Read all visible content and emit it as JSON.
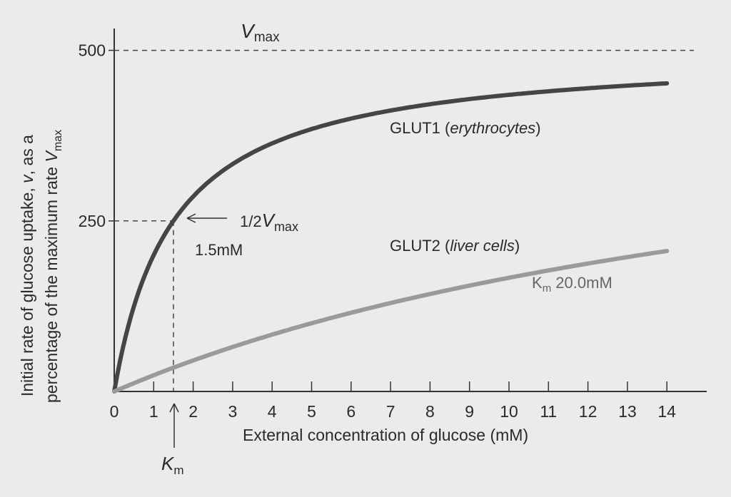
{
  "chart_data": {
    "type": "line",
    "title": "",
    "xlabel": "External concentration of glucose (mM)",
    "ylabel": {
      "line1_prefix": "Initial rate of glucose uptake, ",
      "line1_italic": "v",
      "line1_suffix": ", as a",
      "line2_prefix": "percentage of the maximum rate ",
      "line2_italic": "V",
      "line2_sub": "max"
    },
    "xlim": [
      0,
      15
    ],
    "ylim": [
      0,
      500
    ],
    "x_ticks": [
      0,
      1,
      2,
      3,
      4,
      5,
      6,
      7,
      8,
      9,
      10,
      11,
      12,
      13,
      14
    ],
    "x_tick_labels": [
      "0",
      "1",
      "2",
      "3",
      "4",
      "5",
      "6",
      "7",
      "8",
      "9",
      "10",
      "11",
      "12",
      "13",
      "14"
    ],
    "y_ticks": [
      250,
      500
    ],
    "y_tick_labels": [
      "250",
      "500"
    ],
    "vmax_value": 500,
    "series": [
      {
        "name_prefix": "GLUT1 (",
        "name_italic": "erythrocytes",
        "name_suffix": ")",
        "km": 1.5,
        "vmax": 500,
        "x_range": [
          0,
          14
        ],
        "color": "#454545"
      },
      {
        "name_prefix": "GLUT2 (",
        "name_italic": "liver cells",
        "name_suffix": ")",
        "km": 20.0,
        "vmax": 500,
        "x_range": [
          0,
          14
        ],
        "color": "#9a9a9a"
      }
    ],
    "annotations": {
      "vmax_label": {
        "italic": "V",
        "sub": "max"
      },
      "half_vmax_label": {
        "prefix": "1/2",
        "italic": "V",
        "sub": "max"
      },
      "km1_label": "1.5mM",
      "km2_label": {
        "main": "K",
        "sub": "m",
        "value": " 20.0mM"
      },
      "km_axis_label": {
        "italic": "K",
        "sub": "m"
      }
    }
  }
}
